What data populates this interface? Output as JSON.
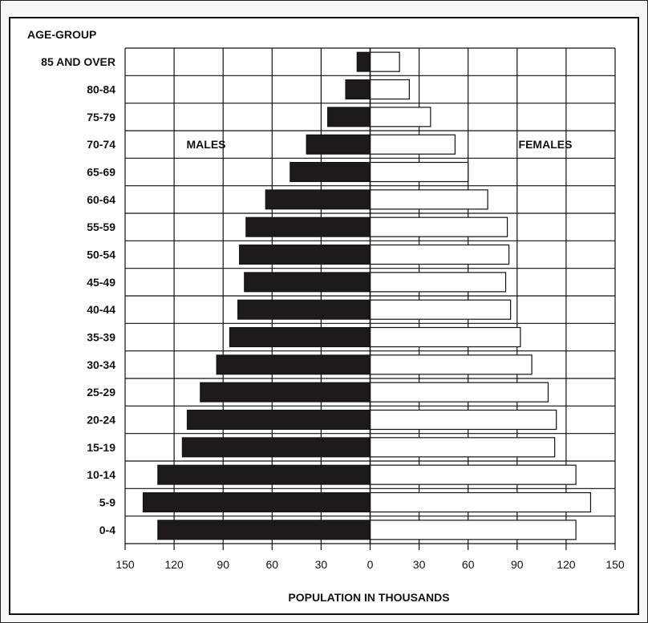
{
  "chart_data": {
    "type": "bar",
    "title": "",
    "category_axis_label": "AGE-GROUP",
    "xlabel": "POPULATION IN THOUSANDS",
    "xlim": [
      -150,
      150
    ],
    "x_ticks": [
      150,
      120,
      90,
      60,
      30,
      0,
      30,
      60,
      90,
      120,
      150
    ],
    "categories": [
      "85 AND OVER",
      "80-84",
      "75-79",
      "70-74",
      "65-69",
      "60-64",
      "55-59",
      "50-54",
      "45-49",
      "40-44",
      "35-39",
      "30-34",
      "25-29",
      "20-24",
      "15-19",
      "10-14",
      "5-9",
      "0-4"
    ],
    "series": [
      {
        "name": "MALES",
        "color": "#1e1a1a",
        "values": [
          8,
          15,
          26,
          39,
          49,
          64,
          76,
          80,
          77,
          81,
          86,
          94,
          104,
          112,
          115,
          130,
          139,
          130
        ]
      },
      {
        "name": "FEMALES",
        "color": "#ffffff",
        "values": [
          18,
          24,
          37,
          52,
          60,
          72,
          84,
          85,
          83,
          86,
          92,
          99,
          109,
          114,
          113,
          126,
          135,
          126
        ]
      }
    ],
    "grid": true
  }
}
